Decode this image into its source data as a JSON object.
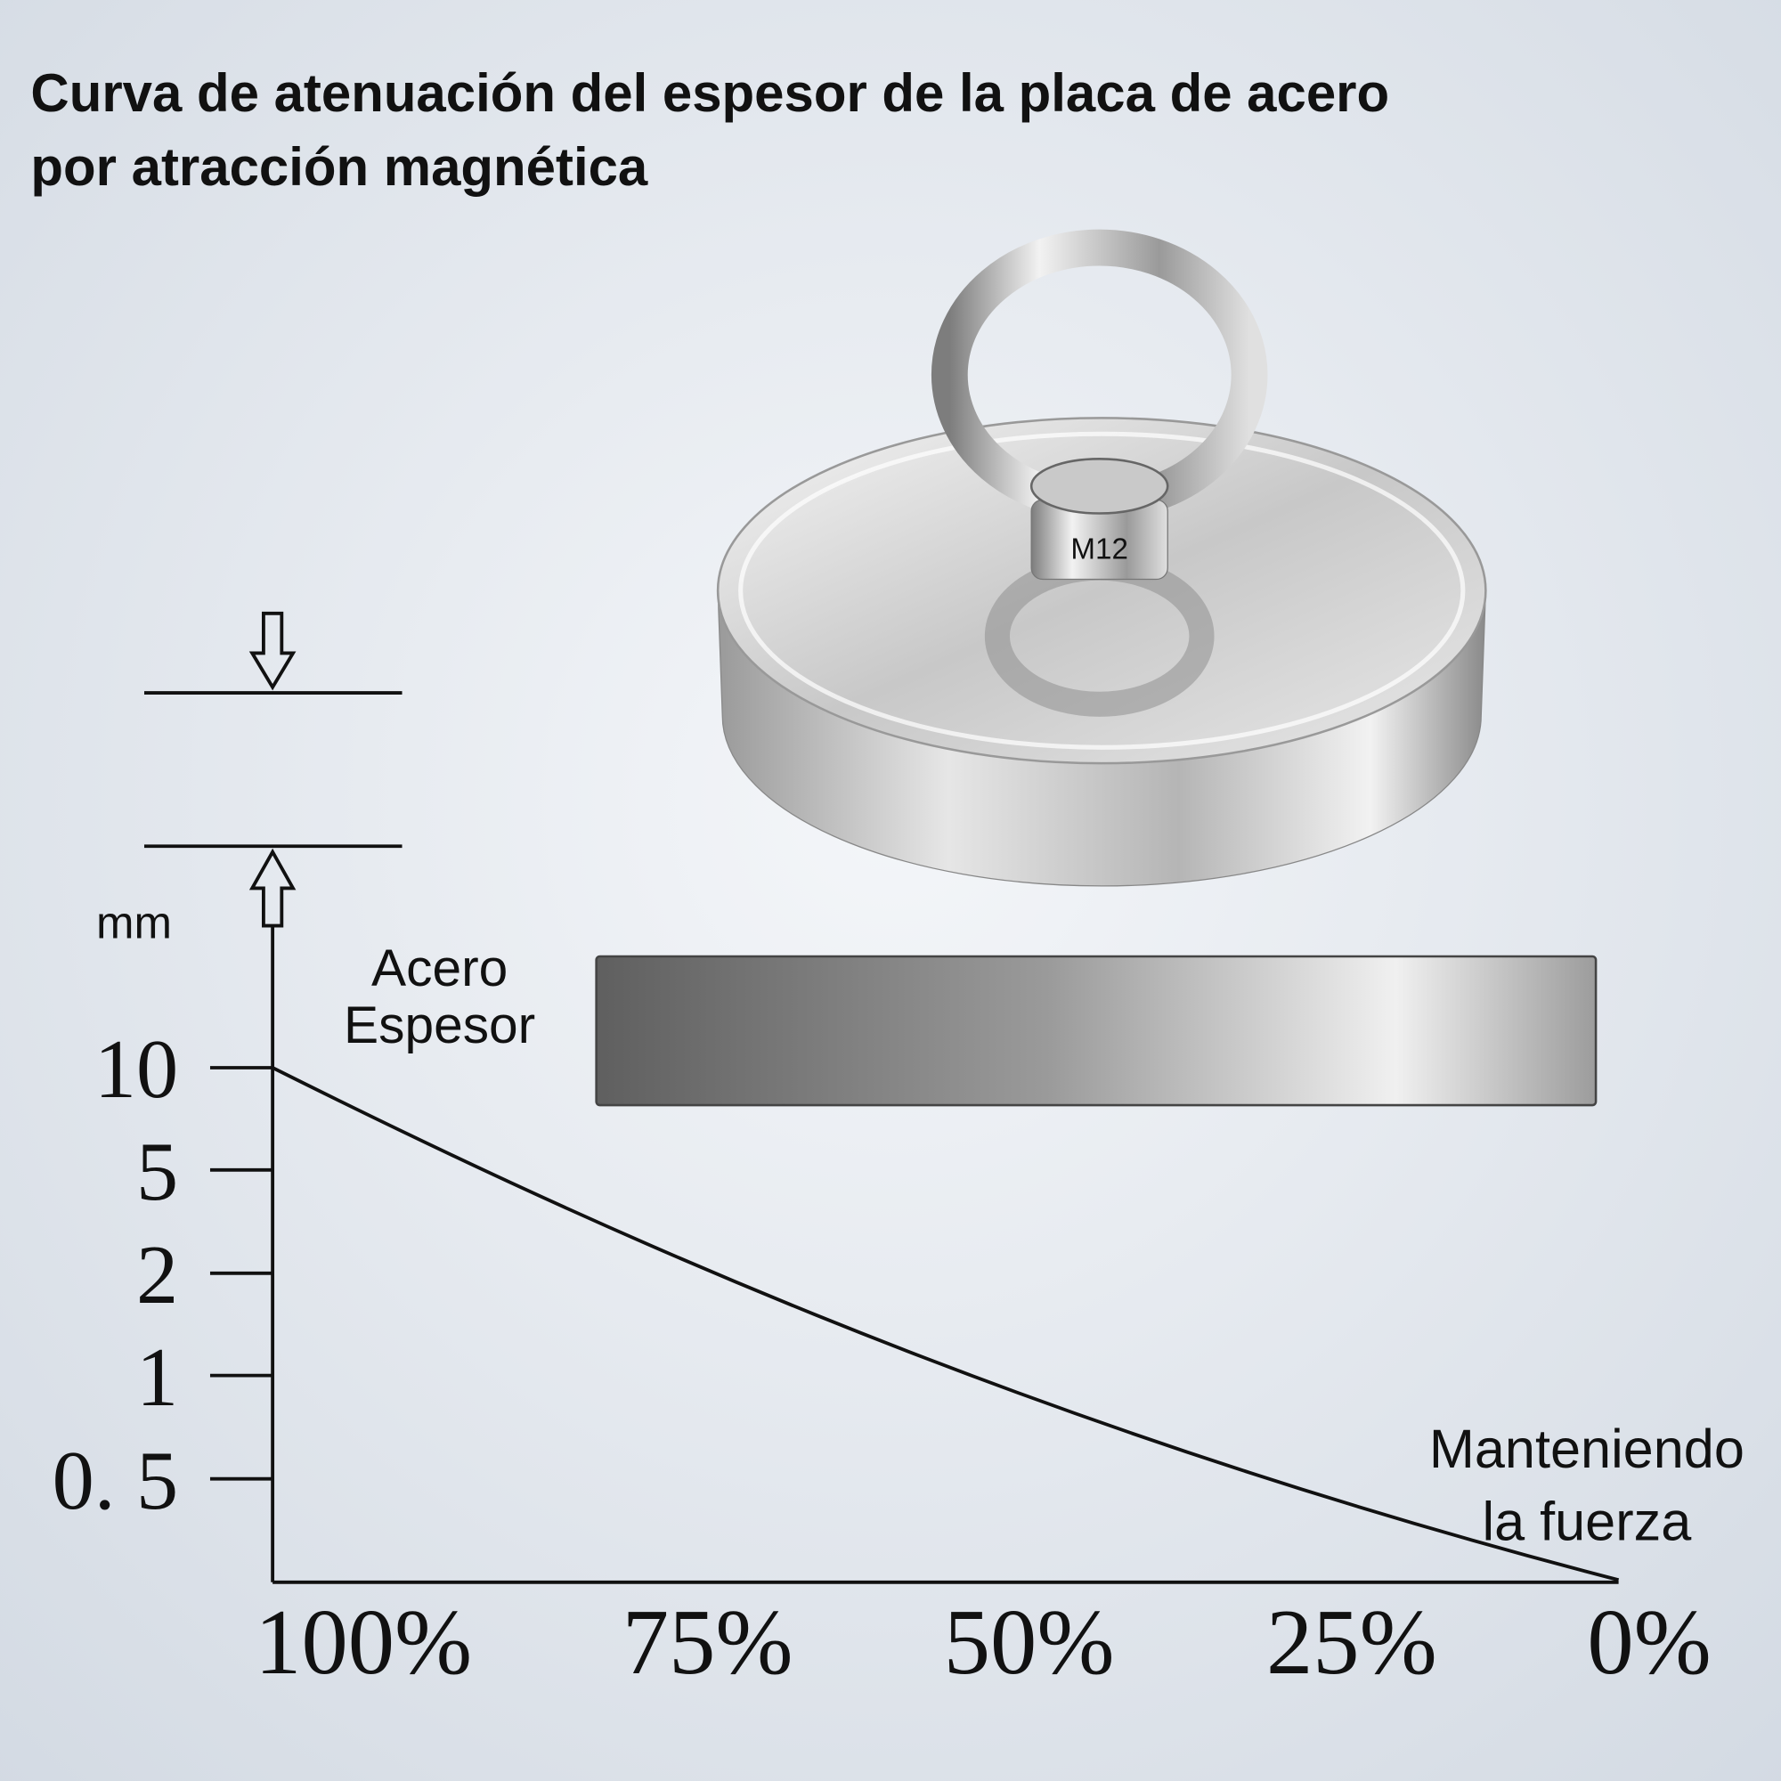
{
  "title": [
    "Curva de atenuación del espesor de la placa de acero",
    "por atracción magnética"
  ],
  "unit": "mm",
  "steel_label": [
    "Acero",
    "Espesor"
  ],
  "y_labels": [
    "10",
    "5",
    "2",
    "1",
    "0. 5"
  ],
  "x_labels": [
    "100%",
    "75%",
    "50%",
    "25%",
    "0%"
  ],
  "note": [
    "Manteniendo",
    "la fuerza"
  ],
  "bolt_marking": "M12"
}
